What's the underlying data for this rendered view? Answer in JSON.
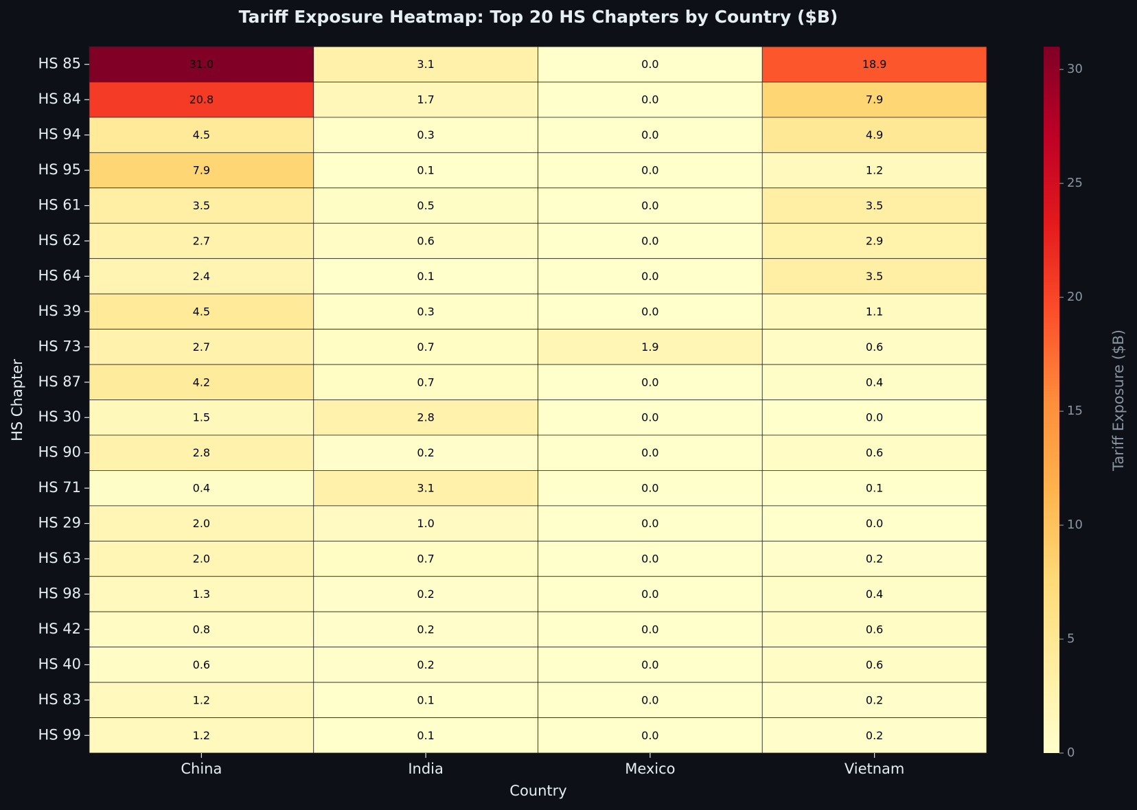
{
  "chart_data": {
    "type": "heatmap",
    "title": "Tariff Exposure Heatmap: Top 20 HS Chapters by Country ($B)",
    "xlabel": "Country",
    "ylabel": "HS Chapter",
    "colorbar_label": "Tariff Exposure ($B)",
    "colormap": "YlOrRd",
    "x": [
      "China",
      "India",
      "Mexico",
      "Vietnam"
    ],
    "y": [
      "HS 85",
      "HS 84",
      "HS 94",
      "HS 95",
      "HS 61",
      "HS 62",
      "HS 64",
      "HS 39",
      "HS 73",
      "HS 87",
      "HS 30",
      "HS 90",
      "HS 71",
      "HS 29",
      "HS 63",
      "HS 98",
      "HS 42",
      "HS 40",
      "HS 83",
      "HS 99"
    ],
    "z": [
      [
        31.0,
        3.1,
        0.0,
        18.9
      ],
      [
        20.8,
        1.7,
        0.0,
        7.9
      ],
      [
        4.5,
        0.3,
        0.0,
        4.9
      ],
      [
        7.9,
        0.1,
        0.0,
        1.2
      ],
      [
        3.5,
        0.5,
        0.0,
        3.5
      ],
      [
        2.7,
        0.6,
        0.0,
        2.9
      ],
      [
        2.4,
        0.1,
        0.0,
        3.5
      ],
      [
        4.5,
        0.3,
        0.0,
        1.1
      ],
      [
        2.7,
        0.7,
        1.9,
        0.6
      ],
      [
        4.2,
        0.7,
        0.0,
        0.4
      ],
      [
        1.5,
        2.8,
        0.0,
        0.0
      ],
      [
        2.8,
        0.2,
        0.0,
        0.6
      ],
      [
        0.4,
        3.1,
        0.0,
        0.1
      ],
      [
        2.0,
        1.0,
        0.0,
        0.0
      ],
      [
        2.0,
        0.7,
        0.0,
        0.2
      ],
      [
        1.3,
        0.2,
        0.0,
        0.4
      ],
      [
        0.8,
        0.2,
        0.0,
        0.6
      ],
      [
        0.6,
        0.2,
        0.0,
        0.6
      ],
      [
        1.2,
        0.1,
        0.0,
        0.2
      ],
      [
        1.2,
        0.1,
        0.0,
        0.2
      ]
    ],
    "value_labels": [
      [
        "31.0",
        "3.1",
        "0.0",
        "18.9"
      ],
      [
        "20.8",
        "1.7",
        "0.0",
        "7.9"
      ],
      [
        "4.5",
        "0.3",
        "0.0",
        "4.9"
      ],
      [
        "7.9",
        "0.1",
        "0.0",
        "1.2"
      ],
      [
        "3.5",
        "0.5",
        "0.0",
        "3.5"
      ],
      [
        "2.7",
        "0.6",
        "0.0",
        "2.9"
      ],
      [
        "2.4",
        "0.1",
        "0.0",
        "3.5"
      ],
      [
        "4.5",
        "0.3",
        "0.0",
        "1.1"
      ],
      [
        "2.7",
        "0.7",
        "1.9",
        "0.6"
      ],
      [
        "4.2",
        "0.7",
        "0.0",
        "0.4"
      ],
      [
        "1.5",
        "2.8",
        "0.0",
        "0.0"
      ],
      [
        "2.8",
        "0.2",
        "0.0",
        "0.6"
      ],
      [
        "0.4",
        "3.1",
        "0.0",
        "0.1"
      ],
      [
        "2.0",
        "1.0",
        "0.0",
        "0.0"
      ],
      [
        "2.0",
        "0.7",
        "0.0",
        "0.2"
      ],
      [
        "1.3",
        "0.2",
        "0.0",
        "0.4"
      ],
      [
        "0.8",
        "0.2",
        "0.0",
        "0.6"
      ],
      [
        "0.6",
        "0.2",
        "0.0",
        "0.6"
      ],
      [
        "1.2",
        "0.1",
        "0.0",
        "0.2"
      ],
      [
        "1.2",
        "0.1",
        "0.0",
        "0.2"
      ]
    ],
    "zlim": [
      0,
      31.0
    ],
    "zticks": [
      0,
      5,
      10,
      15,
      20,
      25,
      30
    ]
  }
}
